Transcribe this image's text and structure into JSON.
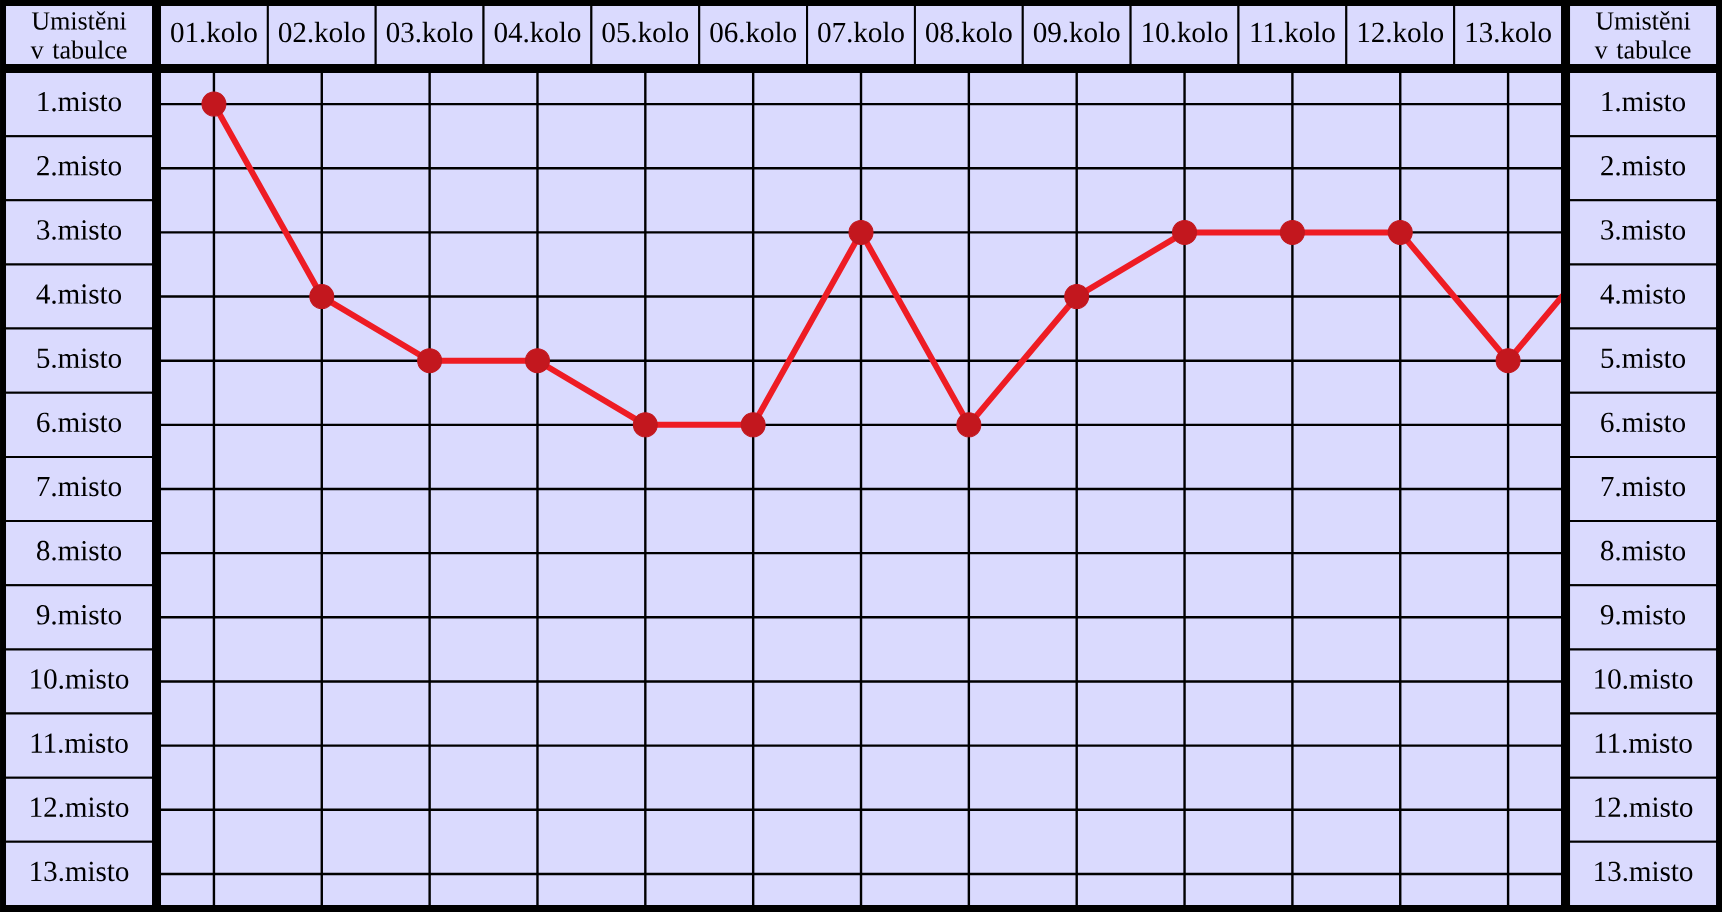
{
  "chart_data": {
    "type": "line",
    "ylabel": "Umistěni v tabulce",
    "y2label": "Umistěni v tabulce",
    "xlim": [
      0.5,
      13.5
    ],
    "xticks": [
      {
        "value": 1,
        "label": "01.kolo"
      },
      {
        "value": 2,
        "label": "02.kolo"
      },
      {
        "value": 3,
        "label": "03.kolo"
      },
      {
        "value": 4,
        "label": "04.kolo"
      },
      {
        "value": 5,
        "label": "05.kolo"
      },
      {
        "value": 6,
        "label": "06.kolo"
      },
      {
        "value": 7,
        "label": "07.kolo"
      },
      {
        "value": 8,
        "label": "08.kolo"
      },
      {
        "value": 9,
        "label": "09.kolo"
      },
      {
        "value": 10,
        "label": "10.kolo"
      },
      {
        "value": 11,
        "label": "11.kolo"
      },
      {
        "value": 12,
        "label": "12.kolo"
      },
      {
        "value": 13,
        "label": "13.kolo"
      }
    ],
    "ylim": [
      13.5,
      0.5
    ],
    "yticks": [
      {
        "value": 1,
        "label": "1.misto"
      },
      {
        "value": 2,
        "label": "2.misto"
      },
      {
        "value": 3,
        "label": "3.misto"
      },
      {
        "value": 4,
        "label": "4.misto"
      },
      {
        "value": 5,
        "label": "5.misto"
      },
      {
        "value": 6,
        "label": "6.misto"
      },
      {
        "value": 7,
        "label": "7.misto"
      },
      {
        "value": 8,
        "label": "8.misto"
      },
      {
        "value": 9,
        "label": "9.misto"
      },
      {
        "value": 10,
        "label": "10.misto"
      },
      {
        "value": 11,
        "label": "11.misto"
      },
      {
        "value": 12,
        "label": "12.misto"
      },
      {
        "value": 13,
        "label": "13.misto"
      }
    ],
    "y2lim": [
      13.5,
      0.5
    ],
    "y2ticks": [
      {
        "value": 1,
        "label": "1.misto"
      },
      {
        "value": 2,
        "label": "2.misto"
      },
      {
        "value": 3,
        "label": "3.misto"
      },
      {
        "value": 4,
        "label": "4.misto"
      },
      {
        "value": 5,
        "label": "5.misto"
      },
      {
        "value": 6,
        "label": "6.misto"
      },
      {
        "value": 7,
        "label": "7.misto"
      },
      {
        "value": 8,
        "label": "8.misto"
      },
      {
        "value": 9,
        "label": "9.misto"
      },
      {
        "value": 10,
        "label": "10.misto"
      },
      {
        "value": 11,
        "label": "11.misto"
      },
      {
        "value": 12,
        "label": "12.misto"
      },
      {
        "value": 13,
        "label": "13.misto"
      }
    ],
    "series": [
      {
        "color": "#ee1c24",
        "x": [
          1,
          2,
          3,
          4,
          5,
          6,
          7,
          8,
          9,
          10,
          11,
          12,
          13
        ],
        "values": [
          1,
          4,
          5,
          5,
          6,
          6,
          3,
          6,
          4,
          3,
          3,
          3,
          5
        ]
      },
      {
        "color": "#ee1c24",
        "x": [
          13,
          13.5
        ],
        "values": [
          5,
          4
        ],
        "marker": "none"
      }
    ],
    "grid": true,
    "marker": "circle",
    "line_style": "solid"
  }
}
